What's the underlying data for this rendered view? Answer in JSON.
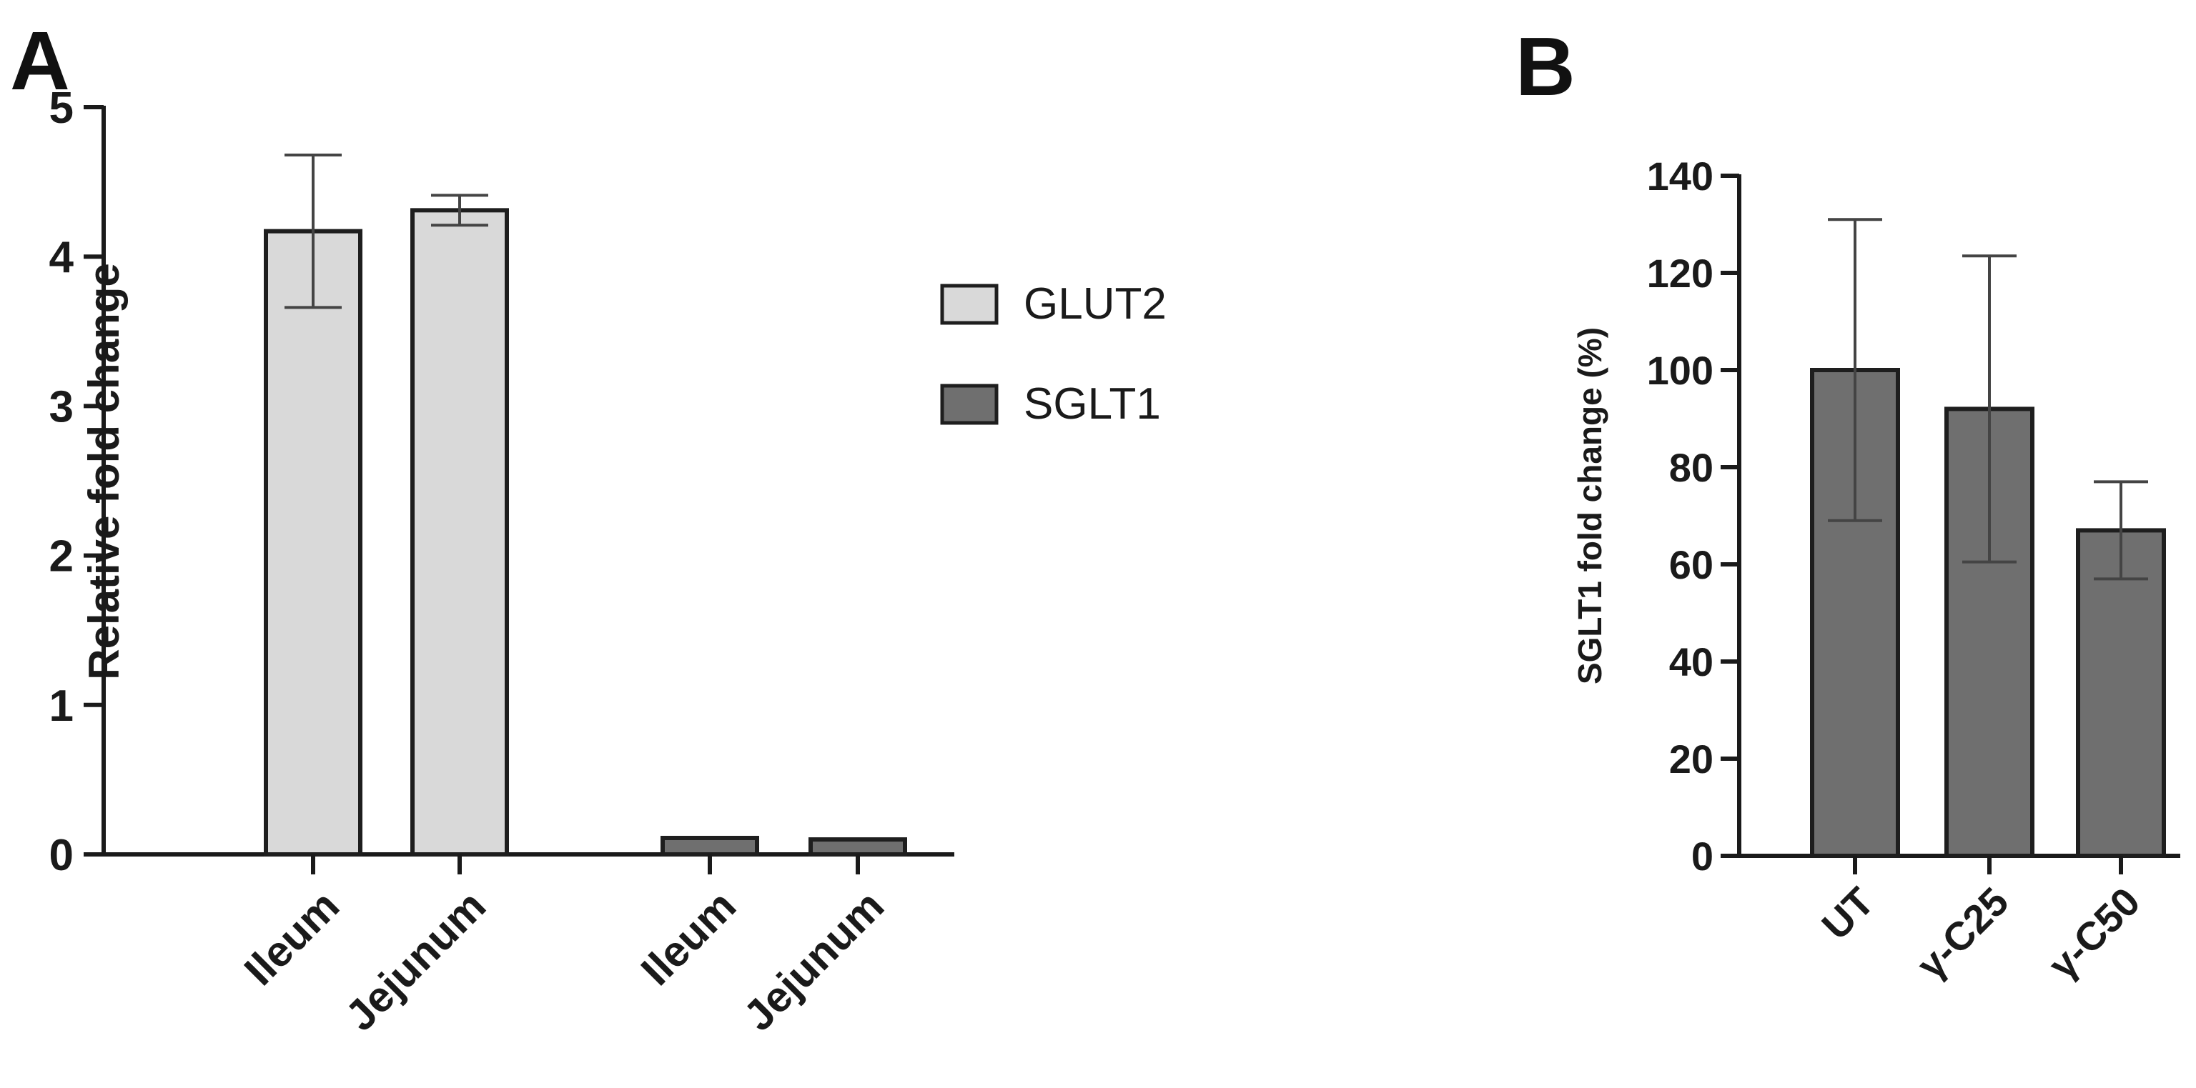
{
  "panels": [
    {
      "label": "A"
    },
    {
      "label": "B"
    }
  ],
  "colors": {
    "glut2_fill": "#d9d9d9",
    "sglt1_fill": "#6f6f6f",
    "outline": "#1e1e1e",
    "axis": "#1a1a1a",
    "errorbar": "#444444"
  },
  "chart_data": [
    {
      "panel": "A",
      "type": "bar",
      "ylabel": "Relative fold change",
      "ylim": [
        0,
        5
      ],
      "yticks": [
        "0",
        "1",
        "2",
        "3",
        "4",
        "5"
      ],
      "grid": false,
      "legend_position": "right",
      "legend": [
        "GLUT2",
        "SGLT1"
      ],
      "groups": [
        {
          "series": "GLUT2",
          "categories": [
            "Ileum",
            "Jejunum"
          ],
          "values": [
            4.17,
            4.31
          ],
          "error": [
            0.51,
            0.1
          ]
        },
        {
          "series": "SGLT1",
          "categories": [
            "Ileum",
            "Jejunum"
          ],
          "values": [
            0.11,
            0.1
          ],
          "error": [
            0.01,
            0.01
          ]
        }
      ]
    },
    {
      "panel": "B",
      "type": "bar",
      "ylabel": "SGLT1 fold change (%)",
      "ylim": [
        0,
        140
      ],
      "yticks": [
        "0",
        "20",
        "40",
        "60",
        "80",
        "100",
        "120",
        "140"
      ],
      "grid": false,
      "categories": [
        "UT",
        "γ-C25",
        "γ-C50"
      ],
      "values": [
        100,
        92,
        67
      ],
      "error": [
        31,
        31.5,
        10
      ]
    }
  ]
}
